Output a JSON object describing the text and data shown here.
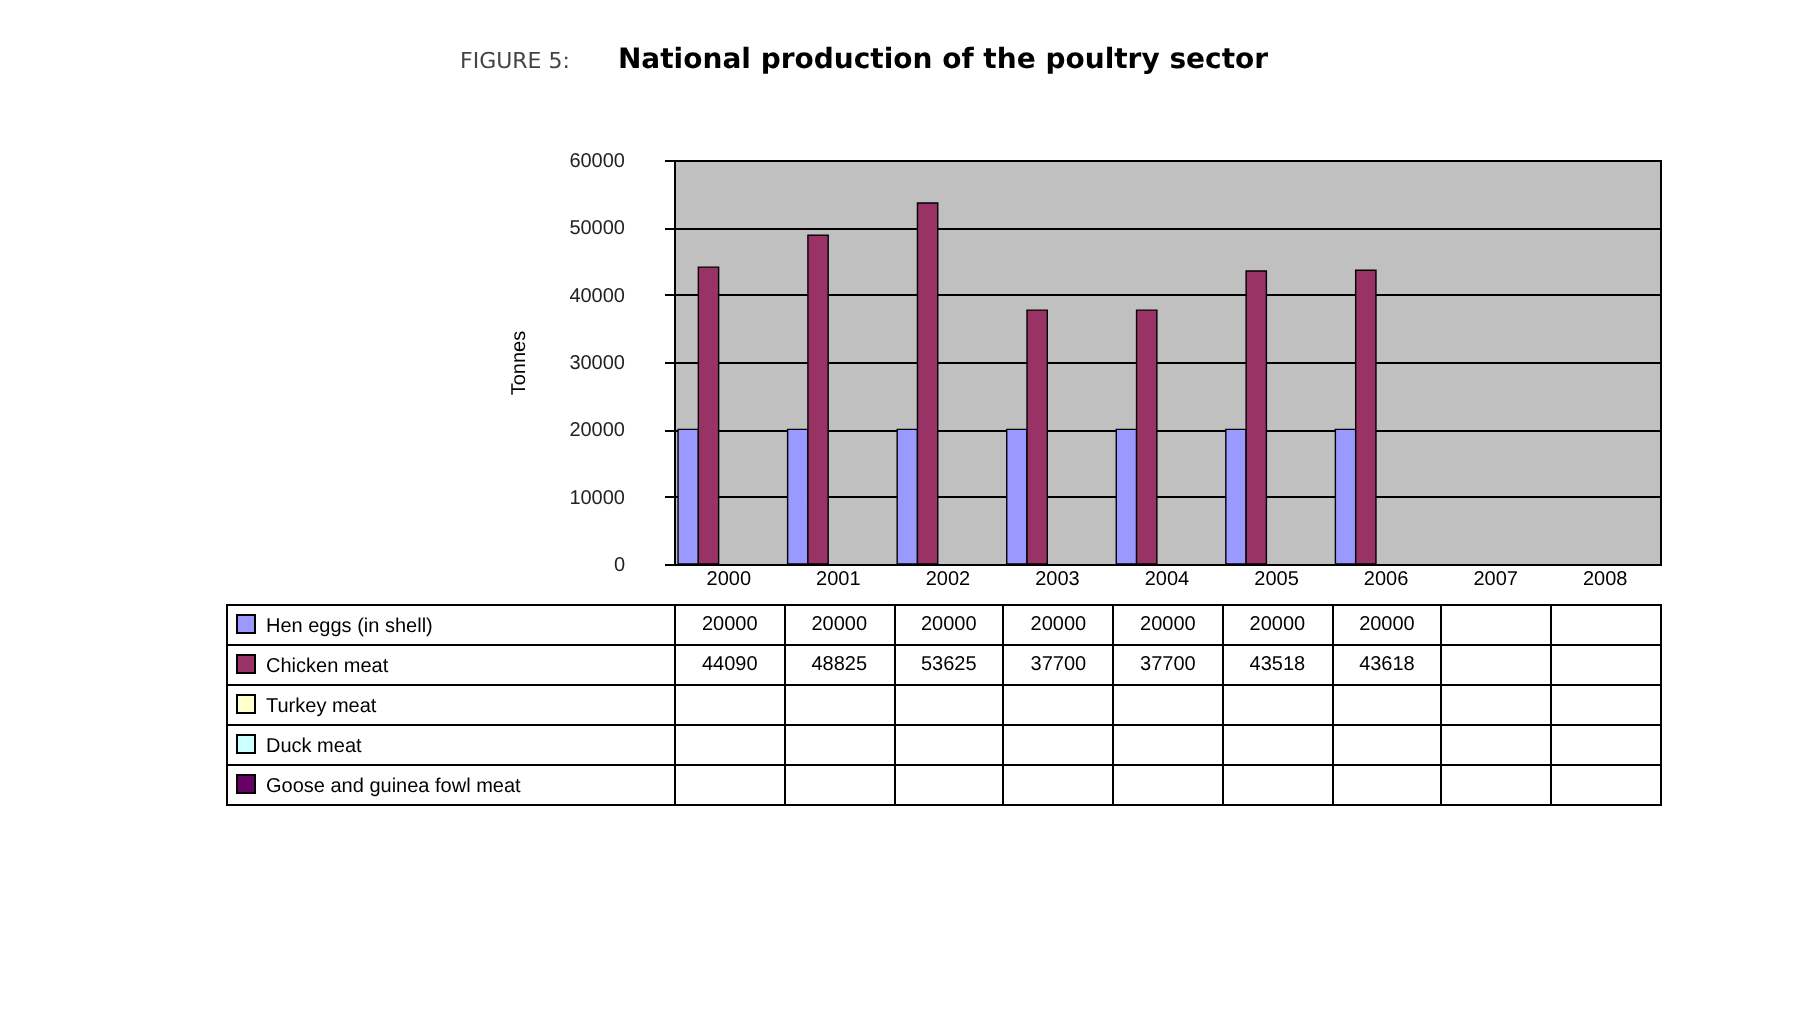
{
  "chart_data": {
    "type": "bar",
    "title": "National production of the poultry sector",
    "annotations": [
      "FIGURE 5:"
    ],
    "ylabel": "Tonnes",
    "categories": [
      "2000",
      "2001",
      "2002",
      "2003",
      "2004",
      "2005",
      "2006",
      "2007",
      "2008"
    ],
    "series": [
      {
        "name": "Hen eggs (in shell)",
        "color": "#9999ff",
        "values": [
          20000,
          20000,
          20000,
          20000,
          20000,
          20000,
          20000,
          null,
          null
        ]
      },
      {
        "name": "Chicken meat",
        "color": "#993366",
        "values": [
          44090,
          48825,
          53625,
          37700,
          37700,
          43518,
          43618,
          null,
          null
        ]
      },
      {
        "name": "Turkey meat",
        "color": "#ffffcc",
        "values": [
          null,
          null,
          null,
          null,
          null,
          null,
          null,
          null,
          null
        ]
      },
      {
        "name": "Duck meat",
        "color": "#ccffff",
        "values": [
          null,
          null,
          null,
          null,
          null,
          null,
          null,
          null,
          null
        ]
      },
      {
        "name": "Goose and guinea fowl meat",
        "color": "#660066",
        "values": [
          null,
          null,
          null,
          null,
          null,
          null,
          null,
          null,
          null
        ]
      }
    ],
    "ylim": [
      0,
      60000
    ],
    "yticks": [
      0,
      10000,
      20000,
      30000,
      40000,
      50000,
      60000
    ],
    "grid": "y",
    "legend": "bottom",
    "data_labels": true
  }
}
